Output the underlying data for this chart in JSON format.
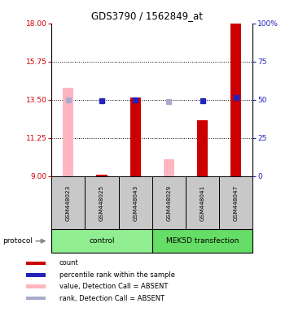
{
  "title": "GDS3790 / 1562849_at",
  "samples": [
    "GSM448023",
    "GSM448025",
    "GSM448043",
    "GSM448029",
    "GSM448041",
    "GSM448047"
  ],
  "ylim_left": [
    9,
    18
  ],
  "ylim_right": [
    0,
    100
  ],
  "yticks_left": [
    9,
    11.25,
    13.5,
    15.75,
    18
  ],
  "yticks_right": [
    0,
    25,
    50,
    75,
    100
  ],
  "ytick_labels_right": [
    "0",
    "25",
    "50",
    "75",
    "100%"
  ],
  "dotted_lines": [
    15.75,
    13.5,
    11.25
  ],
  "count_red": [
    null,
    9.1,
    13.65,
    null,
    12.3,
    18.0
  ],
  "count_pink": [
    14.2,
    null,
    null,
    10.0,
    null,
    null
  ],
  "rank_blue": [
    null,
    13.45,
    13.5,
    null,
    13.45,
    13.65
  ],
  "rank_lightblue": [
    13.5,
    null,
    null,
    13.4,
    null,
    null
  ],
  "red_color": "#CC0000",
  "pink_color": "#FFB6C1",
  "blue_color": "#2222BB",
  "lightblue_color": "#AAAACC",
  "control_color": "#90EE90",
  "transfection_color": "#66DD66",
  "sample_box_color": "#C8C8C8",
  "legend_items": [
    {
      "label": "count",
      "color": "#CC0000"
    },
    {
      "label": "percentile rank within the sample",
      "color": "#2222BB"
    },
    {
      "label": "value, Detection Call = ABSENT",
      "color": "#FFB6C1"
    },
    {
      "label": "rank, Detection Call = ABSENT",
      "color": "#AAAACC"
    }
  ]
}
